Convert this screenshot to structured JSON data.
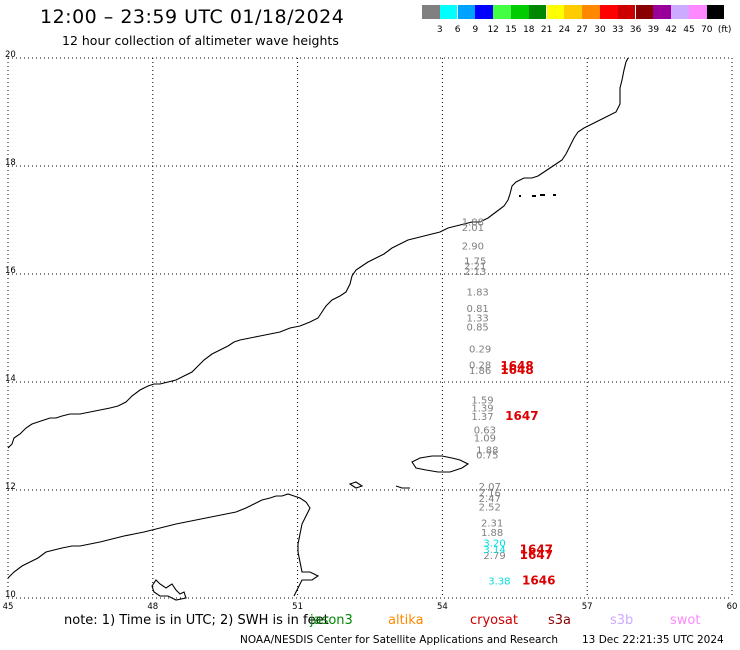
{
  "title": "12:00 – 23:59 UTC 01/18/2024",
  "subtitle": "12 hour collection of altimeter wave heights",
  "legend": {
    "colors": [
      "#808080",
      "#00ffff",
      "#00a2ff",
      "#0000ff",
      "#44ff44",
      "#00cc00",
      "#008800",
      "#ffff00",
      "#ffcc00",
      "#ff8800",
      "#ff0000",
      "#cc0000",
      "#880000",
      "#990099",
      "#ccaaff",
      "#ff88ff",
      "#000000"
    ],
    "labels": [
      "3",
      "6",
      "9",
      "12",
      "15",
      "18",
      "21",
      "24",
      "27",
      "30",
      "33",
      "36",
      "39",
      "42",
      "45",
      "70",
      "(ft)"
    ]
  },
  "axes": {
    "x_ticks": [
      "45",
      "48",
      "51",
      "54",
      "57",
      "60"
    ],
    "y_ticks": [
      "20",
      "18",
      "16",
      "14",
      "12",
      "10"
    ],
    "xlim": [
      45,
      60
    ],
    "ylim": [
      10,
      20
    ]
  },
  "observations": {
    "jason3_gray": [
      {
        "lon": 54.4,
        "lat": 16.9,
        "v": "1.88",
        "color": "#808080"
      },
      {
        "lon": 54.4,
        "lat": 16.8,
        "v": "2.01",
        "color": "#808080"
      },
      {
        "lon": 54.4,
        "lat": 16.45,
        "v": "2.90",
        "color": "#808080"
      },
      {
        "lon": 54.45,
        "lat": 16.18,
        "v": "1.75",
        "color": "#808080"
      },
      {
        "lon": 54.45,
        "lat": 16.08,
        "v": "2.21",
        "color": "#808080"
      },
      {
        "lon": 54.45,
        "lat": 15.98,
        "v": "2.13",
        "color": "#808080"
      },
      {
        "lon": 54.5,
        "lat": 15.6,
        "v": "1.83",
        "color": "#808080"
      },
      {
        "lon": 54.5,
        "lat": 15.3,
        "v": "0.81",
        "color": "#808080"
      },
      {
        "lon": 54.5,
        "lat": 15.12,
        "v": "1.33",
        "color": "#808080"
      },
      {
        "lon": 54.5,
        "lat": 14.95,
        "v": "0.85",
        "color": "#808080"
      },
      {
        "lon": 54.55,
        "lat": 14.55,
        "v": "0.29",
        "color": "#808080"
      },
      {
        "lon": 54.55,
        "lat": 14.25,
        "v": "0.28",
        "color": "#808080"
      },
      {
        "lon": 54.55,
        "lat": 14.15,
        "v": "1.86",
        "color": "#808080"
      },
      {
        "lon": 54.6,
        "lat": 13.6,
        "v": "1.59",
        "color": "#808080"
      },
      {
        "lon": 54.6,
        "lat": 13.45,
        "v": "1.39",
        "color": "#808080"
      },
      {
        "lon": 54.6,
        "lat": 13.3,
        "v": "1.37",
        "color": "#808080"
      },
      {
        "lon": 54.65,
        "lat": 13.05,
        "v": "0.63",
        "color": "#808080"
      },
      {
        "lon": 54.65,
        "lat": 12.9,
        "v": "1.09",
        "color": "#808080"
      },
      {
        "lon": 54.7,
        "lat": 12.68,
        "v": "1.88",
        "color": "#808080"
      },
      {
        "lon": 54.7,
        "lat": 12.58,
        "v": "0.75",
        "color": "#808080"
      },
      {
        "lon": 54.75,
        "lat": 12.0,
        "v": "2.07",
        "color": "#808080"
      },
      {
        "lon": 54.75,
        "lat": 11.88,
        "v": "2.16",
        "color": "#808080"
      },
      {
        "lon": 54.75,
        "lat": 11.78,
        "v": "2.47",
        "color": "#808080"
      },
      {
        "lon": 54.75,
        "lat": 11.62,
        "v": "2.52",
        "color": "#808080"
      },
      {
        "lon": 54.8,
        "lat": 11.32,
        "v": "2.31",
        "color": "#808080"
      },
      {
        "lon": 54.8,
        "lat": 11.15,
        "v": "1.88",
        "color": "#808080"
      },
      {
        "lon": 54.85,
        "lat": 10.72,
        "v": "2.79",
        "color": "#808080"
      }
    ],
    "swot_cyan": [
      {
        "lon": 54.85,
        "lat": 10.95,
        "v": "3.20",
        "color": "#00dddd"
      },
      {
        "lon": 54.85,
        "lat": 10.83,
        "v": "3.14",
        "color": "#00dddd"
      },
      {
        "lon": 54.95,
        "lat": 10.25,
        "v": "3.38",
        "color": "#00dddd"
      }
    ],
    "times_red": [
      {
        "lon": 55.2,
        "lat": 14.22,
        "v": "1648",
        "color": "#dd0000"
      },
      {
        "lon": 55.2,
        "lat": 14.15,
        "v": "1648",
        "color": "#dd0000"
      },
      {
        "lon": 55.3,
        "lat": 13.3,
        "v": "1647",
        "color": "#dd0000"
      },
      {
        "lon": 55.6,
        "lat": 10.82,
        "v": "1647",
        "color": "#dd0000"
      },
      {
        "lon": 55.6,
        "lat": 10.72,
        "v": "1647",
        "color": "#dd0000"
      },
      {
        "lon": 55.65,
        "lat": 10.25,
        "v": "1646",
        "color": "#dd0000"
      }
    ]
  },
  "note": {
    "text": "note:  1) Time is in UTC; 2) SWH is in feet",
    "satellites": [
      {
        "name": "jason3",
        "color": "#008800"
      },
      {
        "name": "altika",
        "color": "#ff8800"
      },
      {
        "name": "cryosat",
        "color": "#cc0000"
      },
      {
        "name": "s3a",
        "color": "#880000"
      },
      {
        "name": "s3b",
        "color": "#ccaaff"
      },
      {
        "name": "swot",
        "color": "#ff88ff"
      }
    ]
  },
  "footer": {
    "left": "NOAA/NESDIS Center for Satellite Applications and Research",
    "right": "13 Dec 22:21:35 UTC 2024"
  }
}
